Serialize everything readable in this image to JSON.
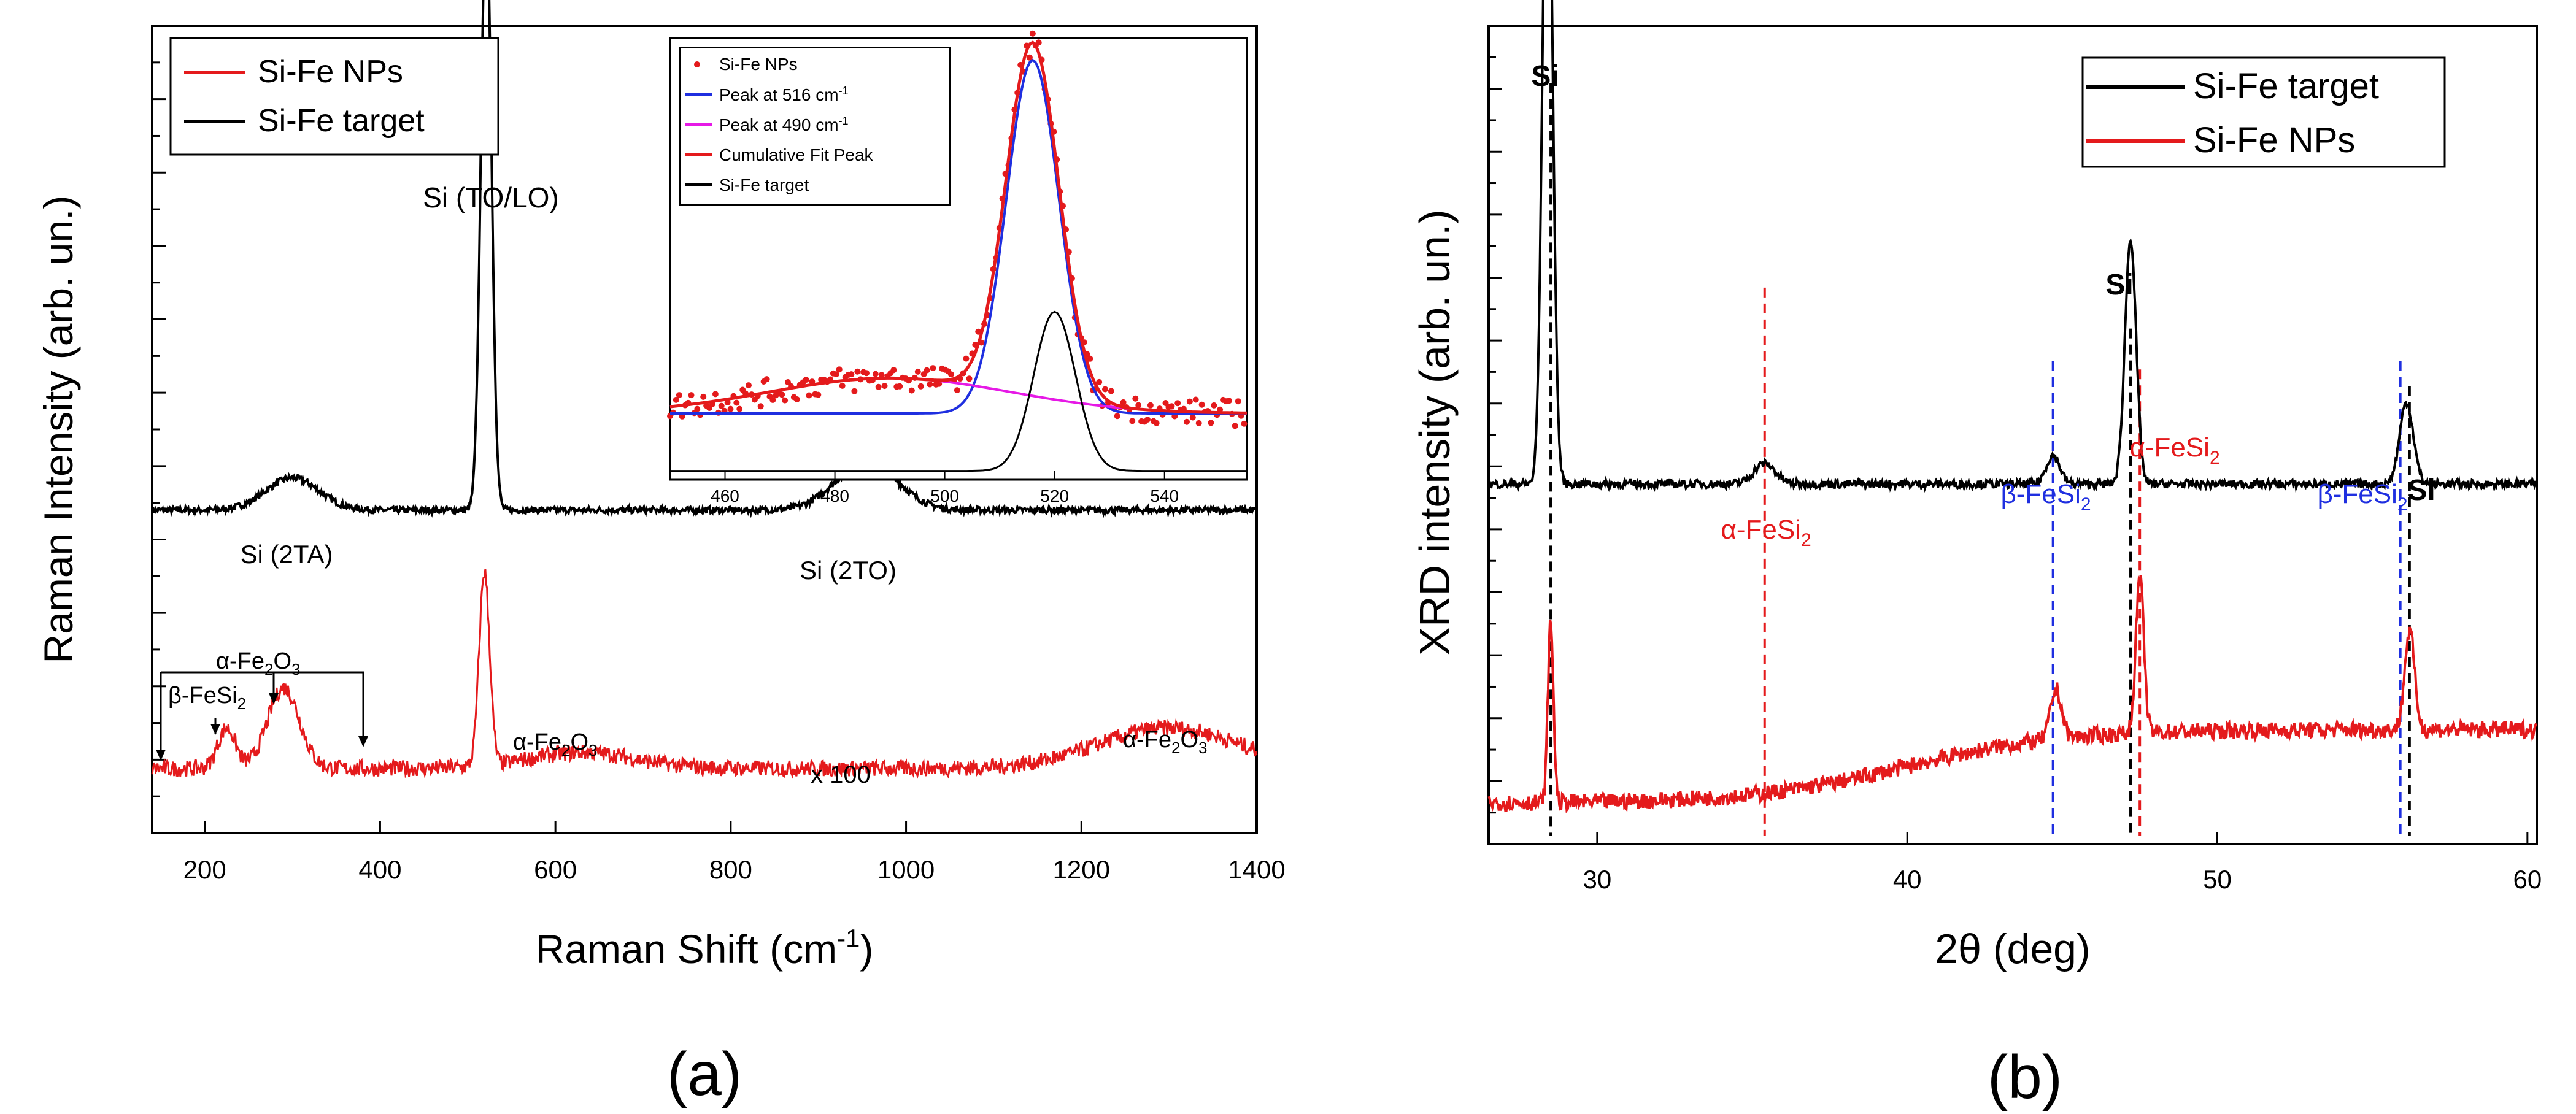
{
  "colors": {
    "red": "#e41a1c",
    "black": "#000000",
    "blue": "#1f2fe0",
    "magenta": "#e619e6",
    "dash_blue": "#1f2fe0",
    "dash_red": "#e41a1c"
  },
  "chart_data": [
    {
      "id": "raman",
      "type": "line",
      "panel_label": "(a)",
      "xlabel_main": "Raman Shift (cm",
      "xlabel_sup": "-1",
      "xlabel_close": ")",
      "ylabel": "Raman Intensity (arb. un.)",
      "xlim": [
        140,
        1400
      ],
      "xticks": [
        200,
        400,
        600,
        800,
        1000,
        1200,
        1400
      ],
      "legend": [
        {
          "label": "Si-Fe NPs",
          "color": "#e41a1c"
        },
        {
          "label": "Si-Fe target",
          "color": "#000000"
        }
      ],
      "series": [
        {
          "name": "Si-Fe target",
          "color": "#000000",
          "baseline": 0.4,
          "peaks": [
            [
              300,
              0.04,
              30
            ],
            [
              521,
              0.75,
              6
            ],
            [
              955,
              0.06,
              35
            ]
          ],
          "noise": 0.004
        },
        {
          "name": "Si-Fe NPs",
          "color": "#e41a1c",
          "baseline": 0.08,
          "peaks": [
            [
              225,
              0.05,
              10
            ],
            [
              290,
              0.1,
              18
            ],
            [
              519,
              0.24,
              6
            ],
            [
              630,
              0.02,
              60
            ],
            [
              1300,
              0.05,
              80
            ]
          ],
          "noise": 0.01
        }
      ],
      "annotations": {
        "si_tolo": "Si (TO/LO)",
        "si_2ta": "Si (2TA)",
        "si_2to": "Si (2TO)",
        "x100": "x 100",
        "fe2o3_label": "-Fe",
        "fesi2_label": "-FeSi"
      },
      "inset": {
        "type": "scatter+line",
        "xlim": [
          450,
          555
        ],
        "xticks": [
          460,
          480,
          500,
          520,
          540
        ],
        "legend": [
          {
            "label": "Si-Fe NPs",
            "color": "#e41a1c",
            "kind": "dot"
          },
          {
            "label": "Peak at 516 cm",
            "sup": "-1",
            "color": "#1f2fe0",
            "kind": "line"
          },
          {
            "label": "Peak at 490 cm",
            "sup": "-1",
            "color": "#e619e6",
            "kind": "line"
          },
          {
            "label": "Cumulative Fit Peak",
            "color": "#e41a1c",
            "kind": "line"
          },
          {
            "label": "Si-Fe target",
            "color": "#000000",
            "kind": "line"
          }
        ],
        "peak1": {
          "center": 516,
          "height": 0.8,
          "sigma": 4.8
        },
        "peak2": {
          "center": 490,
          "height": 0.08,
          "sigma": 22
        },
        "target": {
          "center": 520,
          "height": 0.36,
          "sigma": 3.8
        }
      }
    },
    {
      "id": "xrd",
      "type": "line",
      "panel_label": "(b)",
      "xlabel": "2θ (deg)",
      "ylabel": "XRD intensity (arb. un.)",
      "xlim": [
        26.5,
        60.3
      ],
      "xticks": [
        30,
        40,
        50,
        60
      ],
      "legend": [
        {
          "label": "Si-Fe target",
          "color": "#000000"
        },
        {
          "label": "Si-Fe NPs",
          "color": "#e41a1c"
        }
      ],
      "series": [
        {
          "name": "Si-Fe target",
          "color": "#000000",
          "baseline": 0.44,
          "peaks": [
            [
              28.4,
              0.88,
              0.16
            ],
            [
              35.4,
              0.025,
              0.35
            ],
            [
              44.7,
              0.035,
              0.22
            ],
            [
              47.2,
              0.3,
              0.18
            ],
            [
              56.1,
              0.1,
              0.22
            ]
          ],
          "noise": 0.005
        },
        {
          "name": "Si-Fe NPs",
          "color": "#e41a1c",
          "baseline": 0.05,
          "peaks": [
            [
              28.5,
              0.22,
              0.09
            ],
            [
              44.8,
              0.06,
              0.18
            ],
            [
              47.5,
              0.19,
              0.13
            ],
            [
              56.2,
              0.12,
              0.16
            ]
          ],
          "noise": 0.01
        }
      ],
      "annotations": {
        "si": "Si",
        "alpha_fesi2": "-FeSi",
        "beta_fesi2": "-FeSi"
      }
    }
  ]
}
